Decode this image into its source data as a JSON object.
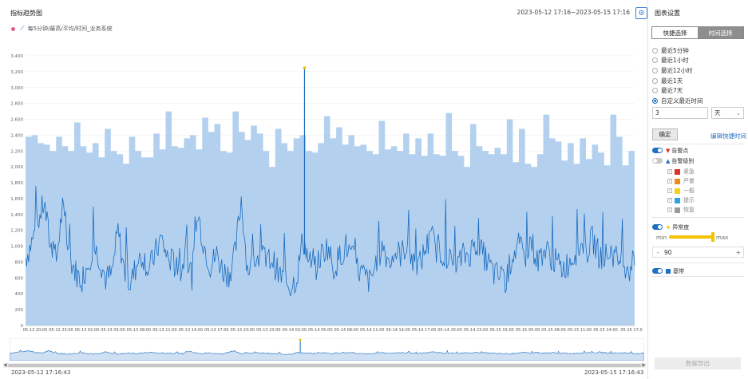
{
  "header": {
    "title": "指标趋势图",
    "range": "2023-05-12 17:16~2023-05-15 17:16"
  },
  "legend": {
    "series_label": "每5分钟/最高/平均/时间_业务系统"
  },
  "footer": {
    "start": "2023-05-12 17:16:43",
    "end": "2023-05-15 17:16:43"
  },
  "chart_data": {
    "type": "line",
    "y_ticks": [
      "3,400",
      "3,200",
      "3,000",
      "2,800",
      "2,600",
      "2,400",
      "2,200",
      "2,000",
      "1,800",
      "1,600",
      "1,400",
      "1,200",
      "1,000",
      "800",
      "600",
      "400",
      "200",
      "0"
    ],
    "x_ticks": [
      "05-12 20:00",
      "05-12 23:00",
      "05-13 02:00",
      "05-13 05:00",
      "05-13 08:00",
      "05-13 11:00",
      "05-13 14:00",
      "05-13 17:00",
      "05-13 20:00",
      "05-13 23:00",
      "05-14 02:00",
      "05-14 05:00",
      "05-14 08:00",
      "05-14 11:00",
      "05-14 14:00",
      "05-14 17:00",
      "05-14 20:00",
      "05-14 23:00",
      "05-15 02:00",
      "05-15 05:00",
      "05-15 08:00",
      "05-15 11:00",
      "05-15 14:00",
      "05-15 17:0"
    ],
    "ylim": [
      0,
      3400
    ],
    "band_upper": [
      2380,
      2400,
      2300,
      2280,
      2200,
      2380,
      2260,
      2200,
      2560,
      2260,
      2180,
      2300,
      2120,
      2480,
      2200,
      2160,
      2040,
      2380,
      2200,
      2120,
      2120,
      2420,
      2220,
      2700,
      2260,
      2240,
      2360,
      2400,
      2220,
      2620,
      2440,
      2540,
      2200,
      2180,
      2700,
      2440,
      2340,
      2520,
      2420,
      2200,
      2000,
      2480,
      2300,
      2200,
      2360,
      2400,
      2200,
      2180,
      2300,
      2640,
      2360,
      2500,
      2280,
      2400,
      2260,
      2280,
      2200,
      2160,
      2580,
      2220,
      2260,
      2200,
      2420,
      2160,
      2360,
      2140,
      2420,
      2160,
      2140,
      2680,
      2200,
      2140,
      2000,
      2540,
      2260,
      2200,
      2160,
      2240,
      2160,
      2600,
      2060,
      2480,
      2040,
      2000,
      2160,
      2660,
      2360,
      2320,
      2080,
      2300,
      2040,
      2360,
      2100,
      2280,
      2180,
      2020,
      2660,
      2380,
      2020,
      2200
    ],
    "values": [
      850,
      1050,
      1300,
      1550,
      1020,
      830,
      1480,
      900,
      700,
      560,
      760,
      1000,
      860,
      590,
      640,
      1200,
      690,
      520,
      760,
      900,
      690,
      900,
      1100,
      860,
      790,
      640,
      900,
      620,
      1400,
      1000,
      750,
      900,
      700,
      650,
      900,
      1600,
      720,
      780,
      900,
      800,
      850,
      650,
      580,
      500,
      600,
      1100,
      800,
      700,
      900,
      1000,
      720,
      880,
      1000,
      850,
      700,
      620,
      540,
      850,
      1000,
      800,
      920,
      900,
      1050,
      750,
      780,
      1000,
      1100,
      900,
      920,
      800,
      750,
      880,
      900,
      1050,
      920,
      800,
      650,
      620,
      560,
      900,
      1000,
      850,
      1100,
      800,
      950,
      900,
      800,
      720,
      780,
      900,
      1000,
      920,
      1100,
      900,
      860,
      950,
      820,
      800,
      720,
      880
    ],
    "spike_value": 3250
  },
  "side": {
    "title": "图表设置",
    "tabs": [
      "快捷选择",
      "时间选择"
    ],
    "quick_options": [
      "最近5分钟",
      "最近1小时",
      "最近12小时",
      "最近1天",
      "最近7天",
      "自定义最近时间"
    ],
    "custom_value": "3",
    "unit": "天",
    "ok": "确定",
    "edit_link": "编辑快捷时间",
    "alarm_point": "告警点",
    "alarm_level": "告警级别",
    "levels": [
      {
        "name": "紧急",
        "color": "#e0312a"
      },
      {
        "name": "严重",
        "color": "#f08c1e"
      },
      {
        "name": "一般",
        "color": "#f5d21a"
      },
      {
        "name": "提示",
        "color": "#2aa4e0"
      },
      {
        "name": "恢复",
        "color": "#9a9a9a"
      }
    ],
    "anomaly": "异常度",
    "min_label": "min",
    "max_label": "max",
    "stepper_minus": "-",
    "stepper_value": "90",
    "stepper_plus": "+",
    "band": "基带",
    "submit": "数据导出"
  }
}
